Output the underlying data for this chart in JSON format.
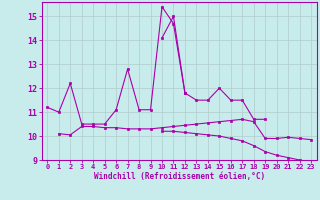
{
  "xlabel": "Windchill (Refroidissement éolien,°C)",
  "background_color": "#c8ecec",
  "grid_color": "#b0cccc",
  "line_color": "#aa00aa",
  "x": [
    0,
    1,
    2,
    3,
    4,
    5,
    6,
    7,
    8,
    9,
    10,
    11,
    12,
    13,
    14,
    15,
    16,
    17,
    18,
    19,
    20,
    21,
    22,
    23
  ],
  "series1": [
    11.2,
    11.0,
    12.2,
    10.5,
    10.5,
    10.5,
    11.1,
    12.8,
    11.1,
    11.1,
    15.4,
    14.7,
    11.8,
    null,
    null,
    null,
    null,
    null,
    null,
    null,
    null,
    null,
    null,
    null
  ],
  "series2": [
    null,
    null,
    null,
    null,
    null,
    null,
    null,
    null,
    null,
    null,
    14.1,
    15.0,
    11.8,
    11.5,
    11.5,
    12.0,
    11.5,
    11.5,
    10.7,
    10.7,
    null,
    null,
    null,
    null
  ],
  "series3": [
    null,
    10.1,
    10.05,
    10.4,
    10.4,
    10.35,
    10.35,
    10.3,
    10.3,
    10.3,
    10.35,
    10.4,
    10.45,
    10.5,
    10.55,
    10.6,
    10.65,
    10.7,
    10.6,
    9.9,
    9.9,
    9.95,
    9.9,
    9.85
  ],
  "series4": [
    null,
    null,
    null,
    null,
    null,
    null,
    null,
    null,
    null,
    null,
    10.2,
    10.2,
    10.15,
    10.1,
    10.05,
    10.0,
    9.9,
    9.8,
    9.6,
    9.35,
    9.2,
    9.1,
    9.0,
    8.9
  ],
  "ylim": [
    9,
    15.6
  ],
  "xlim": [
    -0.5,
    23.5
  ],
  "yticks": [
    9,
    10,
    11,
    12,
    13,
    14,
    15
  ],
  "xticks": [
    0,
    1,
    2,
    3,
    4,
    5,
    6,
    7,
    8,
    9,
    10,
    11,
    12,
    13,
    14,
    15,
    16,
    17,
    18,
    19,
    20,
    21,
    22,
    23
  ]
}
